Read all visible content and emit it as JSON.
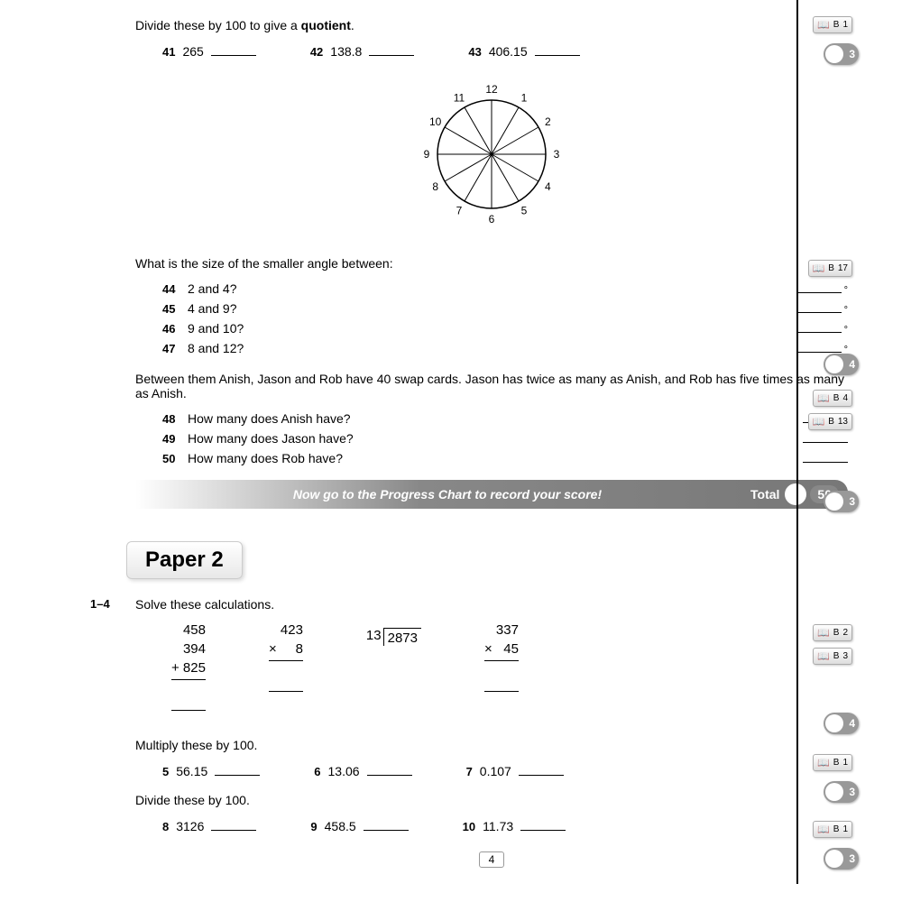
{
  "section1": {
    "instruction_pre": "Divide these by 100 to give a ",
    "instruction_bold": "quotient",
    "instruction_post": ".",
    "questions": [
      {
        "num": "41",
        "val": "265"
      },
      {
        "num": "42",
        "val": "138.8"
      },
      {
        "num": "43",
        "val": "406.15"
      }
    ],
    "badge": {
      "letter": "B",
      "num": "1"
    },
    "score": "3"
  },
  "clock": {
    "hours": [
      "12",
      "1",
      "2",
      "3",
      "4",
      "5",
      "6",
      "7",
      "8",
      "9",
      "10",
      "11"
    ],
    "radius": 60,
    "label_radius": 72,
    "stroke": "#000"
  },
  "section2": {
    "instruction": "What is the size of the smaller angle between:",
    "questions": [
      {
        "num": "44",
        "text": "2 and 4?"
      },
      {
        "num": "45",
        "text": "4 and 9?"
      },
      {
        "num": "46",
        "text": "9 and 10?"
      },
      {
        "num": "47",
        "text": "8 and 12?"
      }
    ],
    "degree": "°",
    "badge": {
      "letter": "B",
      "num": "17"
    },
    "score": "4"
  },
  "section3": {
    "instruction": "Between them Anish, Jason and Rob have 40 swap cards. Jason has twice as many as Anish, and Rob has five times as many as Anish.",
    "questions": [
      {
        "num": "48",
        "text": "How many does Anish have?"
      },
      {
        "num": "49",
        "text": "How many does Jason have?"
      },
      {
        "num": "50",
        "text": "How many does Rob have?"
      }
    ],
    "badges": [
      {
        "letter": "B",
        "num": "4"
      },
      {
        "letter": "B",
        "num": "13"
      }
    ],
    "score": "3"
  },
  "totalbar": {
    "msg": "Now go to the Progress Chart to record your score!",
    "label": "Total",
    "max": "50"
  },
  "paper2": {
    "heading": "Paper 2",
    "sec_calc": {
      "range": "1–4",
      "instruction": "Solve these calculations.",
      "calc1": {
        "l1": "458",
        "l2": "394",
        "l3": "+ 825"
      },
      "calc2": {
        "l1": "423",
        "l2": "×     8"
      },
      "calc3": {
        "divisor": "13",
        "dividend": "2873"
      },
      "calc4": {
        "l1": "337",
        "l2": "×   45"
      },
      "badges": [
        {
          "letter": "B",
          "num": "2"
        },
        {
          "letter": "B",
          "num": "3"
        }
      ],
      "score": "4"
    },
    "sec_mult": {
      "instruction": "Multiply these by 100.",
      "questions": [
        {
          "num": "5",
          "val": "56.15"
        },
        {
          "num": "6",
          "val": "13.06"
        },
        {
          "num": "7",
          "val": "0.107"
        }
      ],
      "badge": {
        "letter": "B",
        "num": "1"
      },
      "score": "3"
    },
    "sec_div": {
      "instruction": "Divide these by 100.",
      "questions": [
        {
          "num": "8",
          "val": "3126"
        },
        {
          "num": "9",
          "val": "458.5"
        },
        {
          "num": "10",
          "val": "11.73"
        }
      ],
      "badge": {
        "letter": "B",
        "num": "1"
      },
      "score": "3"
    }
  },
  "page_number": "4"
}
